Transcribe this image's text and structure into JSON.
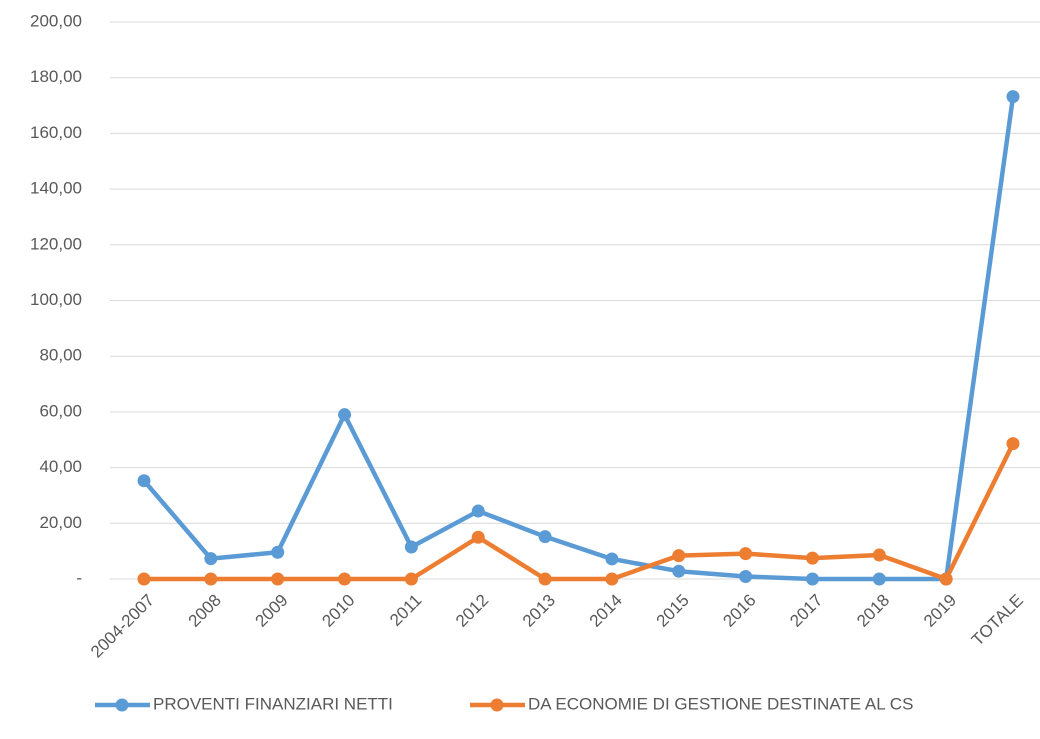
{
  "chart_data": {
    "type": "line",
    "categories": [
      "2004-2007",
      "2008",
      "2009",
      "2010",
      "2011",
      "2012",
      "2013",
      "2014",
      "2015",
      "2016",
      "2017",
      "2018",
      "2019",
      "TOTALE"
    ],
    "series": [
      {
        "name": "PROVENTI FINANZIARI NETTI",
        "color": "#5b9bd5",
        "values": [
          35.3,
          7.3,
          9.6,
          59.0,
          11.5,
          24.4,
          15.2,
          7.2,
          2.8,
          0.9,
          0,
          0,
          0,
          173.2
        ]
      },
      {
        "name": "DA ECONOMIE DI GESTIONE DESTINATE AL CS",
        "color": "#ed7d31",
        "values": [
          0,
          0,
          0,
          0,
          0,
          15.0,
          0,
          0,
          8.4,
          9.1,
          7.5,
          8.6,
          0,
          48.6
        ]
      }
    ],
    "ylim": [
      0,
      200
    ],
    "yticks": [
      {
        "value": 0,
        "label": "-"
      },
      {
        "value": 20,
        "label": "20,00"
      },
      {
        "value": 40,
        "label": "40,00"
      },
      {
        "value": 60,
        "label": "60,00"
      },
      {
        "value": 80,
        "label": "80,00"
      },
      {
        "value": 100,
        "label": "100,00"
      },
      {
        "value": 120,
        "label": "120,00"
      },
      {
        "value": 140,
        "label": "140,00"
      },
      {
        "value": 160,
        "label": "160,00"
      },
      {
        "value": 180,
        "label": "180,00"
      },
      {
        "value": 200,
        "label": "200,00"
      }
    ],
    "grid": true,
    "legend": "bottom"
  }
}
